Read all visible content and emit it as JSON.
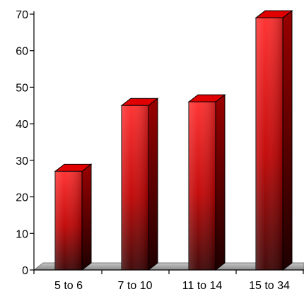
{
  "chart_data": {
    "type": "bar",
    "title": "",
    "xlabel": "",
    "ylabel": "",
    "categories": [
      "5 to 6",
      "7 to 10",
      "11 to 14",
      "15 to 34"
    ],
    "values": [
      27,
      45,
      46,
      69
    ],
    "ylim": [
      0,
      70
    ],
    "yticks": [
      "0",
      "10",
      "20",
      "30",
      "40",
      "50",
      "60",
      "70"
    ],
    "grid": false,
    "legend": "none",
    "colors": {
      "bar_front_light": "#ff2a2a",
      "bar_front_dark": "#3a0000",
      "bar_top": "#e00000",
      "bar_side": "#5a0000",
      "floor": "#a8a8a8",
      "axis": "#000000"
    }
  }
}
